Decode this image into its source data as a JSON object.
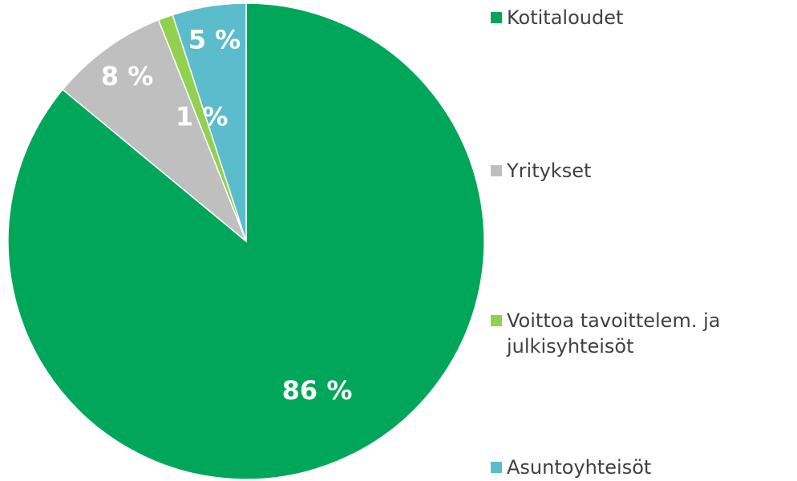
{
  "chart_data": {
    "type": "pie",
    "categories": [
      "Kotitaloudet",
      "Yritykset",
      "Voittoa tavoittelem. ja julkisyhteisöt",
      "Asuntoyhteisöt"
    ],
    "values": [
      86,
      8,
      1,
      5
    ],
    "value_labels": [
      "86 %",
      "8 %",
      "1 %",
      "5 %"
    ],
    "colors": [
      "#00a65a",
      "#bfbfbf",
      "#92d050",
      "#5bbccc"
    ],
    "legend": "right"
  }
}
